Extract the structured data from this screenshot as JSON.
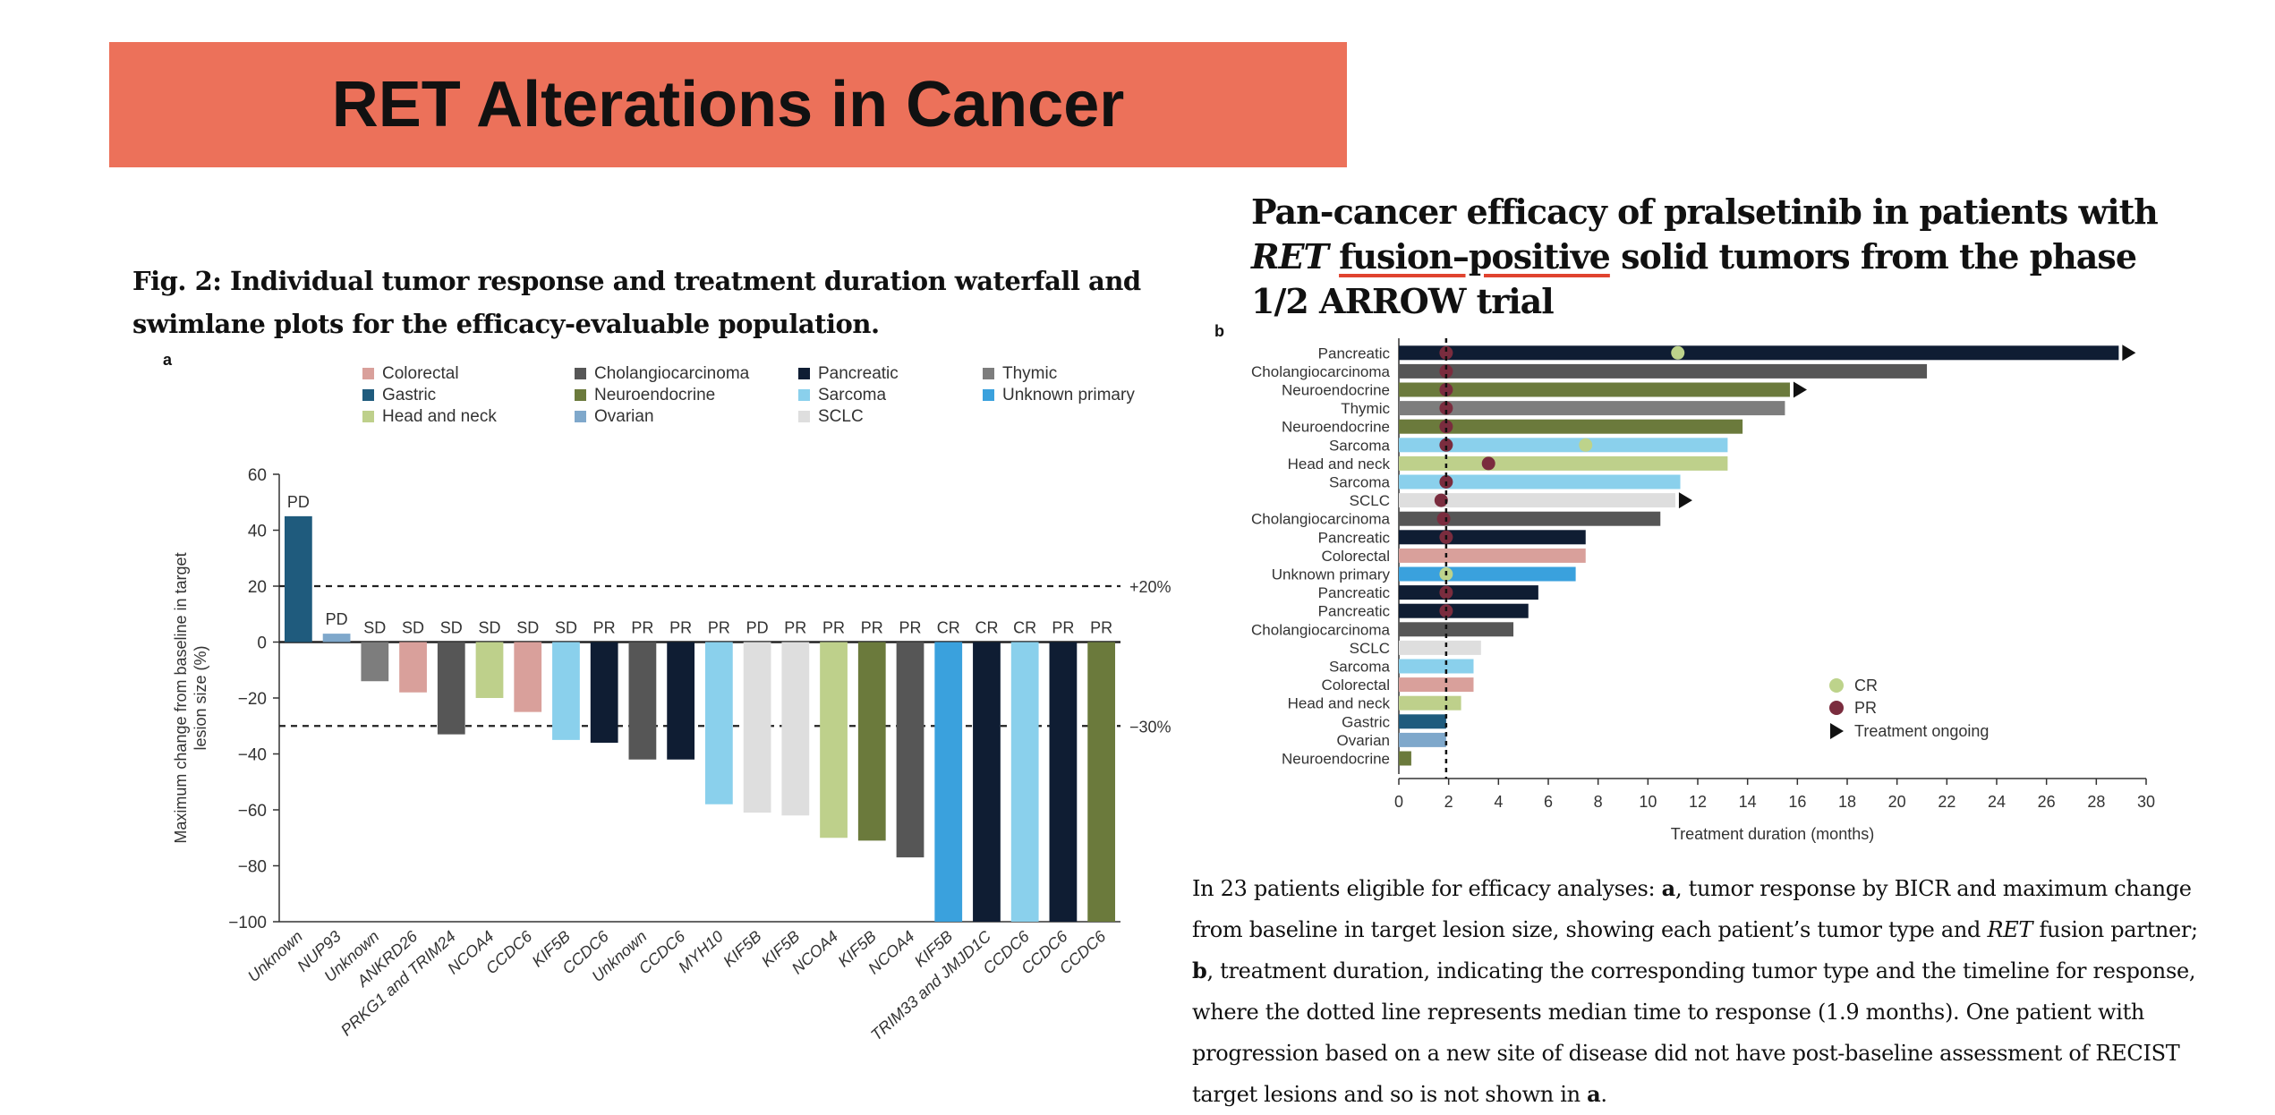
{
  "slide": {
    "title": "RET Alterations in Cancer"
  },
  "figure": {
    "caption": "Fig. 2: Individual tumor response and treatment duration waterfall and swimlane plots for the efficacy-evaluable population.",
    "panel_a_label": "a",
    "panel_b_label": "b"
  },
  "paper": {
    "title_part1": "Pan-cancer efficacy of pralsetinib in patients with ",
    "title_italic": "RET",
    "title_underlined": "fusion–positive",
    "title_part2": " solid tumors from the phase 1/2 ARROW trial"
  },
  "description": {
    "p1": "In 23 patients eligible for efficacy analyses: ",
    "a1": "a",
    "p2": ", tumor response by BICR and maximum change from baseline in target lesion size, showing each patient’s tumor type and ",
    "ret": "RET",
    "p3": " fusion partner; ",
    "b1": "b",
    "p4": ", treatment duration, indicating the corresponding tumor type and the timeline for response, where the dotted line represents median time to response (1.9 months). One patient with progression based on a new site of disease did not have post-baseline assessment of RECIST target lesions and so is not shown in ",
    "a2": "a",
    "p5": "."
  },
  "colors": {
    "Colorectal": "#d9a09b",
    "Gastric": "#1f5b7d",
    "Head and neck": "#bed08b",
    "Cholangiocarcinoma": "#565656",
    "Neuroendocrine": "#6b7a3c",
    "Ovarian": "#7fa8cb",
    "Pancreatic": "#0f1d33",
    "Sarcoma": "#8ad0ec",
    "SCLC": "#dedede",
    "Thymic": "#7d7d7d",
    "Unknown primary": "#3aa1dd",
    "CR": "#bdd38b",
    "PR": "#7a2c3e"
  },
  "chart_data": [
    {
      "type": "bar",
      "panel": "a",
      "ylabel": "Maximum change from baseline in target lesion size (%)",
      "ylim": [
        -100,
        60
      ],
      "yticks": [
        "60",
        "40",
        "20",
        "0",
        "−20",
        "−40",
        "−60",
        "−80",
        "−100"
      ],
      "reference_lines": [
        {
          "value": 20,
          "label": "+20%"
        },
        {
          "value": -30,
          "label": "−30%"
        }
      ],
      "legend": [
        "Colorectal",
        "Gastric",
        "Head and neck",
        "Cholangiocarcinoma",
        "Neuroendocrine",
        "Ovarian",
        "Pancreatic",
        "Sarcoma",
        "SCLC",
        "Thymic",
        "Unknown primary"
      ],
      "categories": [
        "Unknown",
        "NUP93",
        "Unknown",
        "ANKRD26",
        "PRKG1 and TRIM24",
        "NCOA4",
        "CCDC6",
        "KIF5B",
        "CCDC6",
        "Unknown",
        "CCDC6",
        "MYH10",
        "KIF5B",
        "KIF5B",
        "NCOA4",
        "KIF5B",
        "NCOA4",
        "KIF5B",
        "TRIM33 and JMJD1C",
        "CCDC6",
        "CCDC6",
        "CCDC6"
      ],
      "values": [
        45,
        3,
        -14,
        -18,
        -33,
        -20,
        -25,
        -35,
        -36,
        -42,
        -42,
        -58,
        -61,
        -62,
        -70,
        -71,
        -77,
        -100,
        -100,
        -100,
        -100,
        -100
      ],
      "responses": [
        "PD",
        "PD",
        "SD",
        "SD",
        "SD",
        "SD",
        "SD",
        "SD",
        "PR",
        "PR",
        "PR",
        "PR",
        "PD",
        "PR",
        "PR",
        "PR",
        "PR",
        "CR",
        "CR",
        "CR",
        "PR",
        "PR"
      ],
      "tumor_types": [
        "Gastric",
        "Ovarian",
        "Thymic",
        "Colorectal",
        "Cholangiocarcinoma",
        "Head and neck",
        "Colorectal",
        "Sarcoma",
        "Pancreatic",
        "Cholangiocarcinoma",
        "Pancreatic",
        "Sarcoma",
        "SCLC",
        "SCLC",
        "Head and neck",
        "Neuroendocrine",
        "Cholangiocarcinoma",
        "Unknown primary",
        "Pancreatic",
        "Sarcoma",
        "Pancreatic",
        "Neuroendocrine"
      ]
    },
    {
      "type": "bar",
      "panel": "b",
      "orientation": "horizontal",
      "xlabel": "Treatment duration (months)",
      "xlim": [
        0,
        30
      ],
      "xticks": [
        "0",
        "2",
        "4",
        "6",
        "8",
        "10",
        "12",
        "14",
        "16",
        "18",
        "20",
        "22",
        "24",
        "26",
        "28",
        "30"
      ],
      "median_time_to_response": 1.9,
      "legend": [
        "CR",
        "PR",
        "Treatment ongoing"
      ],
      "categories": [
        "Pancreatic",
        "Cholangiocarcinoma",
        "Neuroendocrine",
        "Thymic",
        "Neuroendocrine",
        "Sarcoma",
        "Head and neck",
        "Sarcoma",
        "SCLC",
        "Cholangiocarcinoma",
        "Pancreatic",
        "Colorectal",
        "Unknown primary",
        "Pancreatic",
        "Pancreatic",
        "Cholangiocarcinoma",
        "SCLC",
        "Sarcoma",
        "Colorectal",
        "Head and neck",
        "Gastric",
        "Ovarian",
        "Neuroendocrine"
      ],
      "durations": [
        28.9,
        21.2,
        15.7,
        15.5,
        13.8,
        13.2,
        13.2,
        11.3,
        11.1,
        10.5,
        7.5,
        7.5,
        7.1,
        5.6,
        5.2,
        4.6,
        3.3,
        3.0,
        3.0,
        2.5,
        1.9,
        1.9,
        0.5
      ],
      "ongoing": [
        true,
        false,
        true,
        false,
        false,
        false,
        false,
        false,
        true,
        false,
        false,
        false,
        false,
        false,
        false,
        false,
        false,
        false,
        false,
        false,
        false,
        false,
        false
      ],
      "markers": [
        [
          {
            "t": 1.9,
            "r": "PR"
          },
          {
            "t": 11.2,
            "r": "CR"
          }
        ],
        [
          {
            "t": 1.9,
            "r": "PR"
          }
        ],
        [
          {
            "t": 1.9,
            "r": "PR"
          }
        ],
        [
          {
            "t": 1.9,
            "r": "PR"
          }
        ],
        [
          {
            "t": 1.9,
            "r": "PR"
          }
        ],
        [
          {
            "t": 1.9,
            "r": "PR"
          },
          {
            "t": 7.5,
            "r": "CR"
          }
        ],
        [
          {
            "t": 3.6,
            "r": "PR"
          }
        ],
        [
          {
            "t": 1.9,
            "r": "PR"
          }
        ],
        [
          {
            "t": 1.7,
            "r": "PR"
          }
        ],
        [
          {
            "t": 1.8,
            "r": "PR"
          }
        ],
        [
          {
            "t": 1.9,
            "r": "PR"
          }
        ],
        [],
        [
          {
            "t": 1.9,
            "r": "CR"
          }
        ],
        [
          {
            "t": 1.9,
            "r": "PR"
          }
        ],
        [
          {
            "t": 1.9,
            "r": "PR"
          }
        ],
        [],
        [],
        [],
        [],
        [],
        [],
        [],
        []
      ]
    }
  ]
}
